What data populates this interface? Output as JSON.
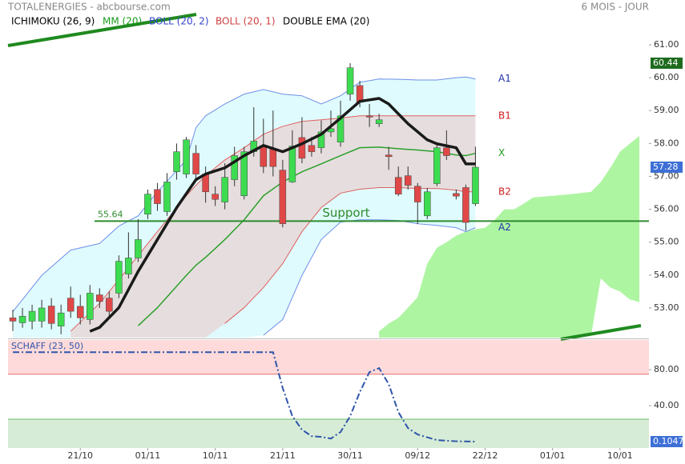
{
  "header": {
    "title": "TOTALENERGIES - abcbourse.com",
    "period": "6 MOIS - JOUR"
  },
  "chart_data": [
    {
      "type": "candlestick",
      "legend": [
        {
          "label": "ICHIMOKU (26, 9)",
          "color": "#000000"
        },
        {
          "label": "MM (20)",
          "color": "#1a9a1a"
        },
        {
          "label": "BOLL (20, 2)",
          "color": "#3344cc"
        },
        {
          "label": "BOLL (20, 1)",
          "color": "#d04040"
        },
        {
          "label": "DOUBLE EMA (20)",
          "color": "#000000"
        }
      ],
      "xlim": [
        -0.5,
        66
      ],
      "xticks": [
        {
          "value": 7,
          "label": "21/10"
        },
        {
          "value": 14,
          "label": "01/11"
        },
        {
          "value": 21,
          "label": "10/11"
        },
        {
          "value": 28,
          "label": "21/11"
        },
        {
          "value": 35,
          "label": "30/11"
        },
        {
          "value": 42,
          "label": "09/12"
        },
        {
          "value": 49,
          "label": "22/12"
        },
        {
          "value": 56,
          "label": "01/01"
        },
        {
          "value": 63,
          "label": "10/01"
        }
      ],
      "ylim": [
        52.1,
        62.36
      ],
      "yticks": [
        {
          "value": 53,
          "label": "53.00"
        },
        {
          "value": 54,
          "label": "54.00"
        },
        {
          "value": 55,
          "label": "55.00"
        },
        {
          "value": 56,
          "label": "56.00"
        },
        {
          "value": 57,
          "label": "57.00"
        },
        {
          "value": 58,
          "label": "58.00"
        },
        {
          "value": 59,
          "label": "59.00"
        },
        {
          "value": 60,
          "label": "60.00"
        },
        {
          "value": 61,
          "label": "61.00"
        }
      ],
      "grid": false,
      "up_color": "#3ddc50",
      "down_color": "#e04848",
      "open": [
        52.7,
        52.55,
        52.6,
        52.6,
        53.06,
        52.45,
        53.3,
        53.05,
        52.65,
        53.4,
        53.3,
        53.45,
        54.03,
        54.52,
        55.85,
        56.6,
        55.93,
        57.14,
        57.07,
        57.7,
        57.07,
        56.46,
        56.22,
        56.9,
        56.41,
        57.75,
        57.9,
        57.85,
        57.19,
        56.83,
        58.18,
        57.94,
        57.87,
        58.35,
        58.04,
        59.5,
        59.76,
        58.84,
        58.6,
        57.65,
        56.97,
        57.02,
        56.7,
        55.8,
        56.78,
        57.87,
        56.48,
        56.66,
        56.17
      ],
      "high": [
        52.95,
        53.0,
        53.1,
        53.25,
        53.3,
        53.1,
        53.65,
        53.4,
        53.7,
        53.6,
        53.5,
        54.6,
        55.3,
        55.7,
        56.6,
        56.8,
        57.1,
        58.0,
        58.2,
        57.95,
        57.3,
        56.7,
        57.4,
        57.9,
        57.9,
        59.1,
        58.75,
        59.0,
        57.5,
        58.4,
        58.8,
        58.2,
        58.7,
        59.0,
        59.3,
        60.44,
        59.9,
        59.2,
        58.9,
        57.9,
        57.3,
        57.3,
        56.8,
        56.65,
        58.0,
        58.4,
        56.6,
        56.75,
        57.9
      ],
      "low": [
        52.3,
        52.4,
        52.35,
        52.4,
        52.35,
        52.2,
        52.7,
        52.5,
        52.5,
        53.0,
        52.75,
        53.3,
        53.9,
        54.4,
        55.7,
        55.95,
        55.8,
        56.9,
        56.95,
        56.9,
        56.2,
        56.1,
        56.0,
        56.7,
        56.3,
        57.6,
        57.1,
        57.0,
        55.45,
        56.8,
        57.4,
        57.6,
        57.7,
        58.2,
        57.9,
        59.3,
        59.1,
        58.5,
        58.5,
        57.2,
        56.4,
        56.6,
        55.55,
        55.7,
        56.7,
        57.5,
        56.3,
        55.35,
        56.1
      ],
      "close": [
        52.6,
        52.75,
        52.9,
        53.0,
        52.53,
        52.85,
        52.9,
        52.7,
        53.45,
        53.2,
        52.9,
        54.42,
        54.52,
        55.08,
        56.46,
        56.17,
        56.83,
        57.75,
        58.11,
        57.07,
        56.53,
        56.3,
        56.97,
        57.63,
        57.75,
        58.07,
        57.3,
        57.3,
        55.56,
        57.92,
        57.55,
        57.75,
        58.35,
        58.45,
        58.84,
        60.3,
        59.25,
        58.8,
        58.72,
        57.6,
        56.46,
        56.73,
        56.22,
        56.53,
        57.87,
        57.63,
        56.4,
        55.6,
        57.28
      ],
      "bands": {
        "x": [
          0,
          3,
          6,
          9,
          11,
          13,
          15,
          18,
          19,
          20,
          22,
          24,
          26,
          28,
          30,
          32,
          34,
          36,
          38,
          40,
          42,
          44,
          46,
          47,
          48
        ],
        "series": [
          {
            "label": "A1",
            "color": "#6f8fe8",
            "text_color": "#2233aa",
            "fill": "#dffbfd",
            "values": [
              52.89,
              53.99,
              54.76,
              54.96,
              55.49,
              55.8,
              56.53,
              57.5,
              58.48,
              58.84,
              59.2,
              59.5,
              59.64,
              59.5,
              59.45,
              59.2,
              59.45,
              59.86,
              59.96,
              59.95,
              59.93,
              59.93,
              60.0,
              60.02,
              59.96
            ]
          },
          {
            "label": "B1",
            "color": "#e06060",
            "text_color": "#d02020",
            "fill": "#e6dede",
            "values": [
              null,
              null,
              52.29,
              53.14,
              53.86,
              54.59,
              55.32,
              56.41,
              56.73,
              57.02,
              57.5,
              57.87,
              58.28,
              58.52,
              58.67,
              58.72,
              58.77,
              58.84,
              58.84,
              58.84,
              58.84,
              58.84,
              58.84,
              58.84,
              58.84
            ]
          },
          {
            "label": "X",
            "color": "#2ca02c",
            "text_color": "#1a9a1a",
            "values": [
              null,
              null,
              null,
              null,
              null,
              52.46,
              53.01,
              53.99,
              54.3,
              54.54,
              55.08,
              55.68,
              56.41,
              56.83,
              57.14,
              57.38,
              57.63,
              57.87,
              57.89,
              57.84,
              57.8,
              57.75,
              57.65,
              57.63,
              57.7
            ]
          },
          {
            "label": "B2",
            "color": "#e06060",
            "text_color": "#d02020",
            "values": [
              null,
              null,
              null,
              null,
              null,
              null,
              null,
              null,
              null,
              null,
              52.53,
              53.01,
              53.62,
              54.35,
              55.32,
              56.05,
              56.49,
              56.61,
              56.66,
              56.66,
              56.63,
              56.63,
              56.58,
              56.53,
              56.53
            ]
          },
          {
            "label": "A2",
            "color": "#6f8fe8",
            "text_color": "#2233aa",
            "values": [
              null,
              null,
              null,
              null,
              null,
              null,
              null,
              null,
              null,
              null,
              null,
              null,
              52.17,
              52.65,
              53.99,
              55.08,
              55.61,
              55.68,
              55.68,
              55.66,
              55.56,
              55.51,
              55.44,
              55.32,
              55.44
            ]
          }
        ]
      },
      "double_ema": {
        "color": "#1a1a1a",
        "x": [
          8,
          9,
          11,
          13,
          15,
          17,
          19,
          20,
          22,
          24,
          26,
          28,
          30,
          32,
          34,
          36,
          38,
          39,
          41,
          43,
          44,
          46,
          47,
          48
        ],
        "values": [
          52.29,
          52.41,
          53.01,
          54.11,
          55.08,
          56.05,
          56.9,
          57.07,
          57.26,
          57.63,
          57.94,
          57.75,
          57.99,
          58.28,
          58.77,
          59.28,
          59.37,
          59.2,
          58.6,
          58.11,
          57.99,
          57.87,
          57.38,
          57.38
        ]
      },
      "cloud": {
        "color": "#aef5a2",
        "x": [
          38,
          39,
          40,
          41,
          42,
          43,
          44,
          45,
          46,
          47,
          48,
          49,
          50,
          51,
          52,
          53,
          54,
          56,
          58,
          60,
          61,
          62,
          63,
          64,
          65
        ],
        "span_a": [
          52.29,
          52.53,
          52.7,
          53.01,
          53.33,
          54.35,
          54.83,
          55.0,
          55.2,
          55.32,
          55.39,
          55.44,
          55.68,
          56.0,
          56.0,
          56.17,
          56.36,
          56.41,
          56.46,
          56.53,
          56.83,
          57.26,
          57.75,
          57.99,
          58.23
        ],
        "span_b": [
          null,
          null,
          null,
          null,
          null,
          null,
          null,
          null,
          null,
          null,
          null,
          null,
          null,
          null,
          null,
          null,
          null,
          null,
          null,
          52.17,
          53.9,
          53.62,
          53.5,
          53.26,
          53.18
        ]
      },
      "support": {
        "value": 55.64,
        "label": "Support",
        "color": "#2e8b2e"
      },
      "max_tag": 60.44,
      "last_tag": 57.28
    },
    {
      "type": "line",
      "title": "SCHAFF (23, 50)",
      "color": "#2f55aa",
      "xlim": [
        -0.5,
        66
      ],
      "ylim": [
        -7,
        113
      ],
      "yticks": [
        {
          "value": 80,
          "label": "80.00"
        },
        {
          "value": 40,
          "label": "40.00"
        }
      ],
      "upper_zone": 75,
      "lower_zone": 25,
      "x": [
        0,
        27,
        28,
        29,
        30,
        31,
        32,
        33,
        34,
        35,
        36,
        37,
        38,
        39,
        40,
        41,
        42,
        44,
        46,
        48
      ],
      "values": [
        99.5,
        99.5,
        59.6,
        28.4,
        13.3,
        6.2,
        5.3,
        3.5,
        10.7,
        28.4,
        55.1,
        77.3,
        81.8,
        64.0,
        32.9,
        15.1,
        8.0,
        1.8,
        0.5,
        0.1047
      ],
      "last_tag": 0.1047
    }
  ]
}
